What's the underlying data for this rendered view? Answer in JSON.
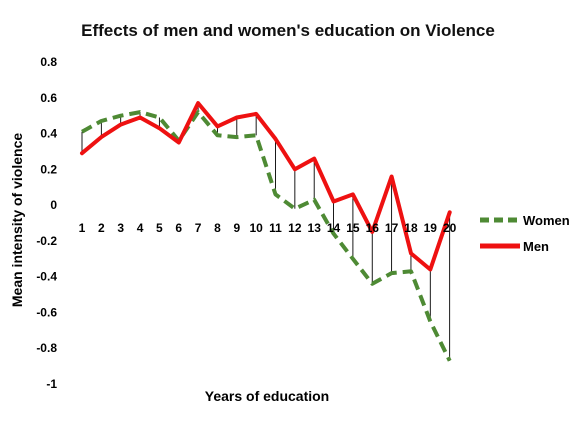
{
  "chart_data": {
    "type": "line",
    "title": "Effects of men and women's education on Violence",
    "xlabel": "Years of education",
    "ylabel": "Mean intensity of violence",
    "x": [
      1,
      2,
      3,
      4,
      5,
      6,
      7,
      8,
      9,
      10,
      11,
      12,
      13,
      14,
      15,
      16,
      17,
      18,
      19,
      20
    ],
    "ylim": [
      -1,
      0.8
    ],
    "yticks": [
      "0.8",
      "0.6",
      "0.4",
      "0.2",
      "0",
      "-0.2",
      "-0.4",
      "-0.6",
      "-0.8",
      "-1"
    ],
    "grid": false,
    "legend_position": "right",
    "series": [
      {
        "name": "Women",
        "color": "#4e8a34",
        "style": "dashed",
        "values": [
          0.41,
          0.47,
          0.5,
          0.52,
          0.49,
          0.36,
          0.52,
          0.39,
          0.38,
          0.39,
          0.06,
          -0.02,
          0.03,
          -0.16,
          -0.3,
          -0.44,
          -0.38,
          -0.37,
          -0.65,
          -0.87
        ]
      },
      {
        "name": "Men",
        "color": "#ee1111",
        "style": "solid",
        "values": [
          0.29,
          0.38,
          0.45,
          0.49,
          0.43,
          0.35,
          0.57,
          0.44,
          0.49,
          0.51,
          0.37,
          0.2,
          0.26,
          0.02,
          0.06,
          -0.15,
          0.16,
          -0.27,
          -0.36,
          -0.04
        ]
      }
    ]
  }
}
